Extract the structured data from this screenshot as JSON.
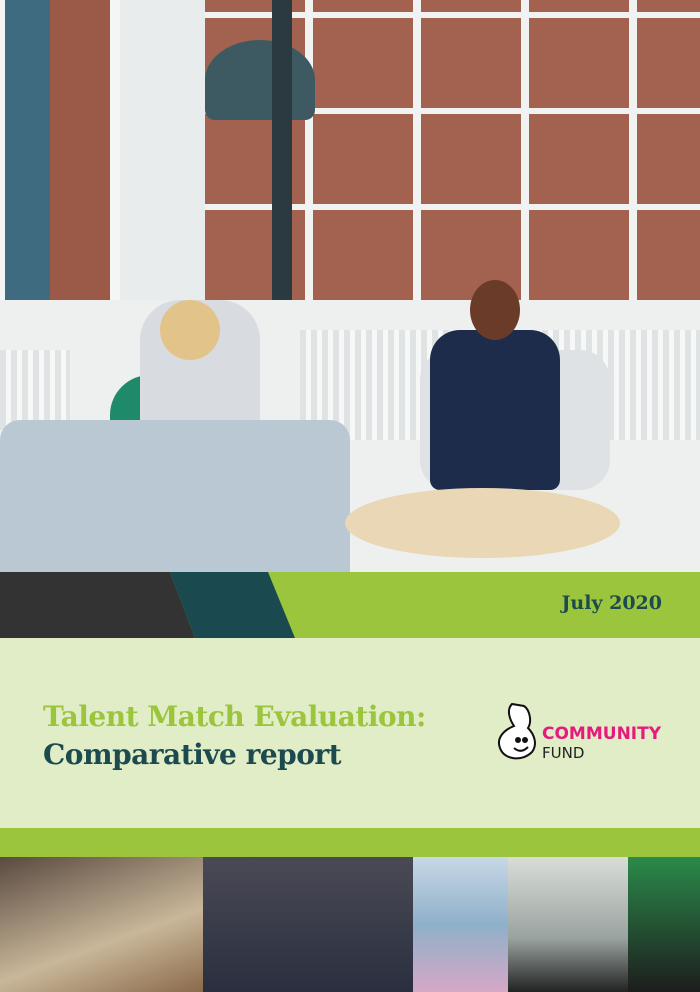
{
  "cover": {
    "date": "July 2020",
    "title_line1": "Talent Match Evaluation:",
    "title_line2": "Comparative report",
    "logo": {
      "word1": "COMMUNITY",
      "word2": "FUND",
      "icon": "crossed-fingers-icon"
    }
  },
  "colors": {
    "green": "#9bc53d",
    "teal": "#1d4a4f",
    "dark": "#333333",
    "light_panel": "#e1edc6",
    "brand_pink": "#e6197d"
  },
  "photos": [
    "hero-office-meeting-photo",
    "group-workshop-photo",
    "team-group-photo",
    "moby-poster-photo",
    "cera-office-photo",
    "two-people-photo"
  ]
}
